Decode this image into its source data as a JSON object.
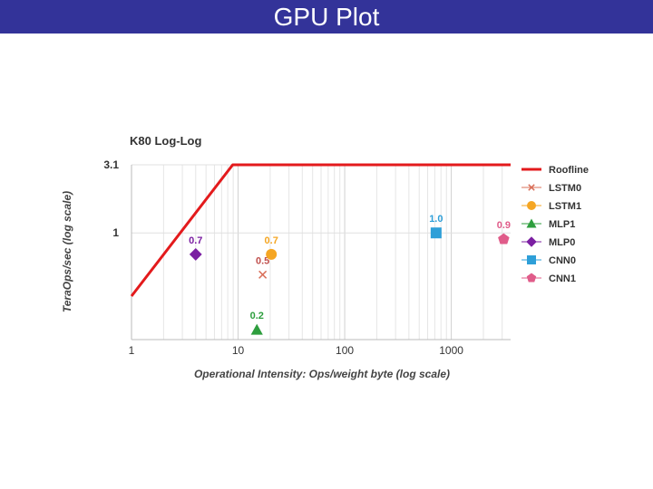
{
  "slide": {
    "title": "GPU Plot"
  },
  "chart_data": {
    "type": "scatter",
    "title": "K80 Log-Log",
    "xlabel": "Operational Intensity: Ops/weight byte (log scale)",
    "ylabel": "TeraOps/sec (log scale)",
    "x_scale": "log",
    "y_scale": "log",
    "xlim": [
      1,
      3600
    ],
    "ylim": [
      0.17,
      3.1
    ],
    "x_ticks": [
      {
        "value": 1,
        "label": "1"
      },
      {
        "value": 10,
        "label": "10"
      },
      {
        "value": 100,
        "label": "100"
      },
      {
        "value": 1000,
        "label": "1000"
      }
    ],
    "y_ticks": [
      {
        "value": 3.1,
        "label": "3.1"
      },
      {
        "value": 1,
        "label": "1"
      }
    ],
    "grid": true,
    "legend": "right",
    "roofline": {
      "name": "Roofline",
      "color": "#e31a1c",
      "points": [
        [
          1,
          0.35
        ],
        [
          8.9,
          3.1
        ],
        [
          3600,
          3.1
        ]
      ]
    },
    "series": [
      {
        "name": "LSTM0",
        "marker": "x",
        "color": "#d9705a",
        "x": 17,
        "y": 0.5,
        "label": "0.5",
        "label_color": "#c0504d"
      },
      {
        "name": "LSTM1",
        "marker": "circle",
        "color": "#f5a623",
        "x": 20.5,
        "y": 0.7,
        "label": "0.7",
        "label_color": "#f5a623"
      },
      {
        "name": "MLP1",
        "marker": "triangle",
        "color": "#2e9e3e",
        "x": 15,
        "y": 0.2,
        "label": "0.2",
        "label_color": "#2e9e3e"
      },
      {
        "name": "MLP0",
        "marker": "diamond",
        "color": "#7b1fa2",
        "x": 4,
        "y": 0.7,
        "label": "0.7",
        "label_color": "#7b1fa2"
      },
      {
        "name": "CNN0",
        "marker": "square",
        "color": "#2e9fd8",
        "x": 720,
        "y": 1.0,
        "label": "1.0",
        "label_color": "#2e9fd8"
      },
      {
        "name": "CNN1",
        "marker": "pentagon",
        "color": "#e05c8a",
        "x": 3100,
        "y": 0.9,
        "label": "0.9",
        "label_color": "#e05c8a"
      }
    ]
  }
}
